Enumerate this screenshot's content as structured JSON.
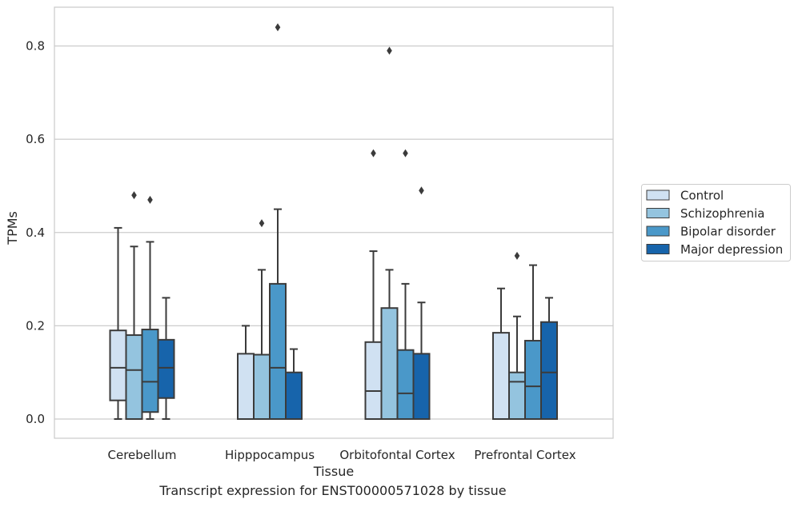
{
  "caption": "Transcript expression for ENST00000571028 by tissue",
  "chart_data": {
    "type": "box",
    "title": "",
    "xlabel": "Tissue",
    "ylabel": "TPMs",
    "ylim": [
      -0.04,
      0.885
    ],
    "yticks": [
      0.0,
      0.2,
      0.4,
      0.6,
      0.8
    ],
    "ytick_labels": [
      "0.0",
      "0.2",
      "0.4",
      "0.6",
      "0.8"
    ],
    "grid": "horizontal",
    "legend_position": "right",
    "categories": [
      "Cerebellum",
      "Hipppocampus",
      "Orbitofontal Cortex",
      "Prefrontal Cortex"
    ],
    "series": [
      {
        "name": "Control",
        "color": "#d0e1f2",
        "boxes": [
          {
            "whislo": 0.0,
            "q1": 0.04,
            "med": 0.11,
            "q3": 0.19,
            "whishi": 0.41,
            "fliers": []
          },
          {
            "whislo": 0.0,
            "q1": 0.0,
            "med": 0.0,
            "q3": 0.14,
            "whishi": 0.2,
            "fliers": []
          },
          {
            "whislo": 0.0,
            "q1": 0.0,
            "med": 0.06,
            "q3": 0.165,
            "whishi": 0.36,
            "fliers": [
              0.57
            ]
          },
          {
            "whislo": 0.0,
            "q1": 0.0,
            "med": 0.0,
            "q3": 0.185,
            "whishi": 0.28,
            "fliers": []
          }
        ]
      },
      {
        "name": "Schizophrenia",
        "color": "#94c4df",
        "boxes": [
          {
            "whislo": 0.0,
            "q1": 0.0,
            "med": 0.105,
            "q3": 0.18,
            "whishi": 0.37,
            "fliers": [
              0.48
            ]
          },
          {
            "whislo": 0.0,
            "q1": 0.0,
            "med": 0.0,
            "q3": 0.138,
            "whishi": 0.32,
            "fliers": [
              0.42
            ]
          },
          {
            "whislo": 0.0,
            "q1": 0.0,
            "med": 0.0,
            "q3": 0.238,
            "whishi": 0.32,
            "fliers": [
              0.79
            ]
          },
          {
            "whislo": 0.0,
            "q1": 0.0,
            "med": 0.08,
            "q3": 0.1,
            "whishi": 0.22,
            "fliers": [
              0.35
            ]
          }
        ]
      },
      {
        "name": "Bipolar disorder",
        "color": "#4a98c9",
        "boxes": [
          {
            "whislo": 0.0,
            "q1": 0.015,
            "med": 0.08,
            "q3": 0.192,
            "whishi": 0.38,
            "fliers": [
              0.47
            ]
          },
          {
            "whislo": 0.0,
            "q1": 0.0,
            "med": 0.11,
            "q3": 0.29,
            "whishi": 0.45,
            "fliers": [
              0.84
            ]
          },
          {
            "whislo": 0.0,
            "q1": 0.0,
            "med": 0.055,
            "q3": 0.148,
            "whishi": 0.29,
            "fliers": [
              0.57
            ]
          },
          {
            "whislo": 0.0,
            "q1": 0.0,
            "med": 0.07,
            "q3": 0.168,
            "whishi": 0.33,
            "fliers": []
          }
        ]
      },
      {
        "name": "Major depression",
        "color": "#1764ab",
        "boxes": [
          {
            "whislo": 0.0,
            "q1": 0.045,
            "med": 0.11,
            "q3": 0.17,
            "whishi": 0.26,
            "fliers": []
          },
          {
            "whislo": 0.0,
            "q1": 0.0,
            "med": 0.0,
            "q3": 0.1,
            "whishi": 0.15,
            "fliers": []
          },
          {
            "whislo": 0.0,
            "q1": 0.0,
            "med": 0.0,
            "q3": 0.14,
            "whishi": 0.25,
            "fliers": [
              0.49
            ]
          },
          {
            "whislo": 0.0,
            "q1": 0.0,
            "med": 0.1,
            "q3": 0.208,
            "whishi": 0.26,
            "fliers": []
          }
        ]
      }
    ]
  }
}
